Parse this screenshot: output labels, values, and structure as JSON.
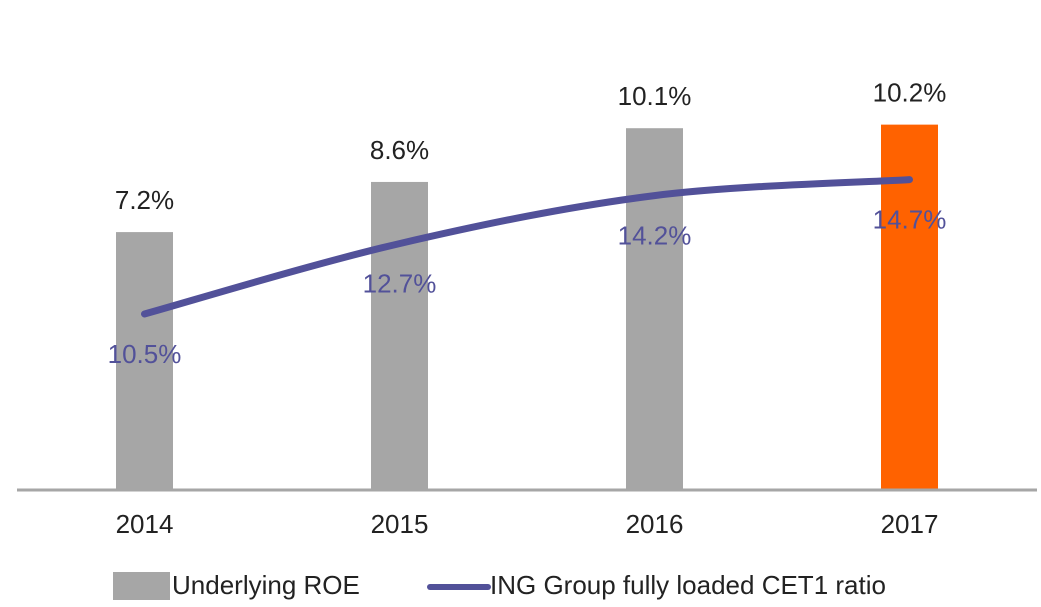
{
  "chart_data": {
    "type": "bar_line",
    "categories": [
      "2014",
      "2015",
      "2016",
      "2017"
    ],
    "series": [
      {
        "name": "Underlying ROE",
        "color": "#a6a6a6",
        "highlight_color": "#ff6200",
        "highlight_index": 3,
        "type": "bar",
        "axis": "y",
        "values": [
          7.2,
          8.6,
          10.1,
          10.2
        ],
        "value_labels": [
          "7.2%",
          "8.6%",
          "10.1%",
          "10.2%"
        ]
      },
      {
        "name": "ING Group fully loaded CET1 ratio",
        "color": "#525199",
        "type": "line",
        "axis": "y2",
        "values": [
          10.5,
          12.7,
          14.2,
          14.7
        ],
        "value_labels": [
          "10.5%",
          "12.7%",
          "14.2%",
          "14.7%"
        ]
      }
    ],
    "ylim": [
      0,
      13.4
    ],
    "y2lim": [
      5,
      20
    ],
    "grid": false,
    "legend": "bottom"
  }
}
